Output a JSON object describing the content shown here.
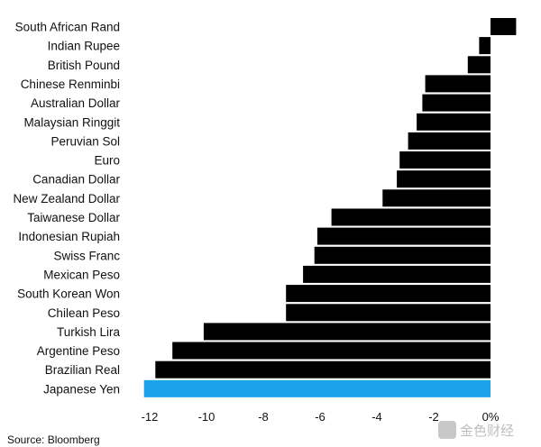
{
  "chart_data": {
    "type": "bar",
    "orientation": "horizontal",
    "categories": [
      "South African Rand",
      "Indian Rupee",
      "British Pound",
      "Chinese Renminbi",
      "Australian Dollar",
      "Malaysian Ringgit",
      "Peruvian Sol",
      "Euro",
      "Canadian Dollar",
      "New Zealand Dollar",
      "Taiwanese Dollar",
      "Indonesian Rupiah",
      "Swiss Franc",
      "Mexican Peso",
      "South Korean Won",
      "Chilean Peso",
      "Turkish Lira",
      "Argentine Peso",
      "Brazilian Real",
      "Japanese Yen"
    ],
    "values": [
      0.9,
      -0.4,
      -0.8,
      -2.3,
      -2.4,
      -2.6,
      -2.9,
      -3.2,
      -3.3,
      -3.8,
      -5.6,
      -6.1,
      -6.2,
      -6.6,
      -7.2,
      -7.2,
      -10.1,
      -11.2,
      -11.8,
      -12.2
    ],
    "highlight_category": "Japanese Yen",
    "colors": {
      "bar": "#000000",
      "highlight": "#1aa3e8"
    },
    "xlim": [
      -12.6,
      0.9
    ],
    "xticks": [
      -12,
      -10,
      -8,
      -6,
      -4,
      -2,
      0
    ],
    "xtick_labels": [
      "-12",
      "-10",
      "-8",
      "-6",
      "-4",
      "-2",
      "0%"
    ],
    "grid": false,
    "source": "Source: Bloomberg"
  },
  "watermark": {
    "text": "金色财经"
  }
}
